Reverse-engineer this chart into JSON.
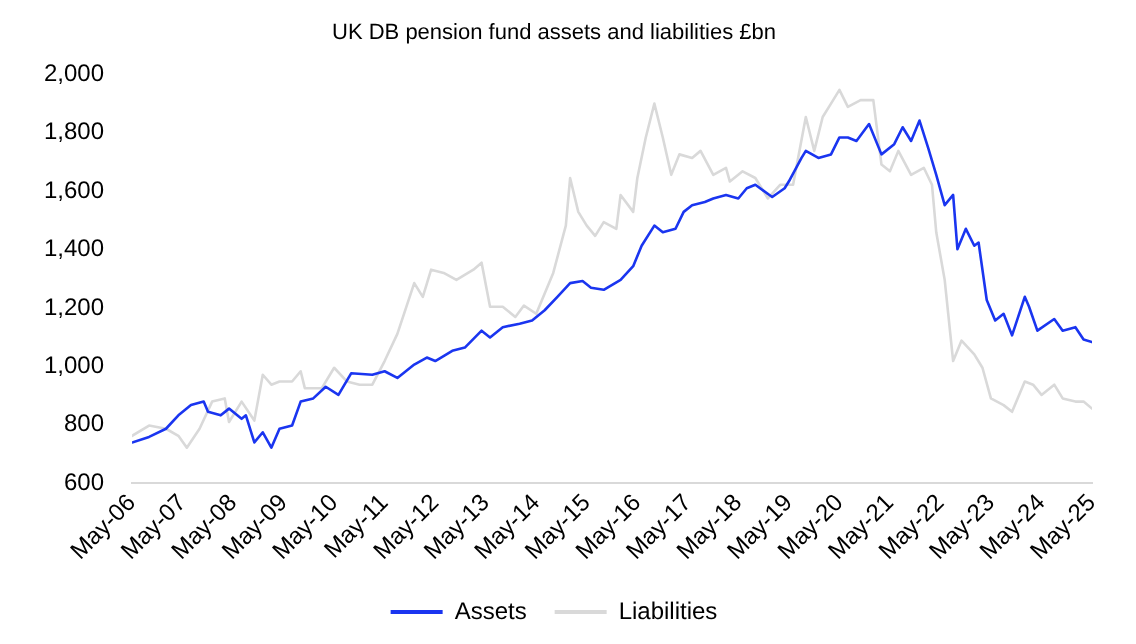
{
  "chart_data": {
    "type": "line",
    "title": "UK DB pension fund assets and liabilities £bn",
    "xlim": [
      "2006-05",
      "2025-05"
    ],
    "xticks": [
      {
        "value": "2006-05",
        "label": "May-06"
      },
      {
        "value": "2007-05",
        "label": "May-07"
      },
      {
        "value": "2008-05",
        "label": "May-08"
      },
      {
        "value": "2009-05",
        "label": "May-09"
      },
      {
        "value": "2010-05",
        "label": "May-10"
      },
      {
        "value": "2011-05",
        "label": "May-11"
      },
      {
        "value": "2012-05",
        "label": "May-12"
      },
      {
        "value": "2013-05",
        "label": "May-13"
      },
      {
        "value": "2014-05",
        "label": "May-14"
      },
      {
        "value": "2015-05",
        "label": "May-15"
      },
      {
        "value": "2016-05",
        "label": "May-16"
      },
      {
        "value": "2017-05",
        "label": "May-17"
      },
      {
        "value": "2018-05",
        "label": "May-18"
      },
      {
        "value": "2019-05",
        "label": "May-19"
      },
      {
        "value": "2020-05",
        "label": "May-20"
      },
      {
        "value": "2021-05",
        "label": "May-21"
      },
      {
        "value": "2022-05",
        "label": "May-22"
      },
      {
        "value": "2023-05",
        "label": "May-23"
      },
      {
        "value": "2024-05",
        "label": "May-24"
      },
      {
        "value": "2025-05",
        "label": "May-25"
      }
    ],
    "ylim": [
      600,
      2000
    ],
    "yticks": [
      600,
      800,
      {
        "value": 1000,
        "label": "1,000"
      },
      {
        "value": 1200,
        "label": "1,200"
      },
      {
        "value": 1400,
        "label": "1,400"
      },
      {
        "value": 1600,
        "label": "1,600"
      },
      {
        "value": 1800,
        "label": "1,800"
      },
      {
        "value": 2000,
        "label": "2,000"
      }
    ],
    "grid": false,
    "legend": "bottom",
    "marker": "none",
    "line_style": "solid",
    "series": [
      {
        "name": "Assets",
        "color": "#1a35f0",
        "x": [
          "2006-05",
          "2006-09",
          "2007-01",
          "2007-04",
          "2007-07",
          "2007-10",
          "2007-11",
          "2008-02",
          "2008-04",
          "2008-07",
          "2008-08",
          "2008-10",
          "2008-12",
          "2009-02",
          "2009-04",
          "2009-07",
          "2009-09",
          "2009-12",
          "2010-03",
          "2010-06",
          "2010-09",
          "2011-02",
          "2011-05",
          "2011-08",
          "2011-12",
          "2012-03",
          "2012-05",
          "2012-09",
          "2012-12",
          "2013-04",
          "2013-06",
          "2013-09",
          "2014-01",
          "2014-04",
          "2014-07",
          "2014-10",
          "2015-01",
          "2015-04",
          "2015-06",
          "2015-09",
          "2016-01",
          "2016-04",
          "2016-06",
          "2016-09",
          "2016-11",
          "2017-02",
          "2017-04",
          "2017-06",
          "2017-09",
          "2017-11",
          "2018-02",
          "2018-05",
          "2018-07",
          "2018-09",
          "2019-01",
          "2019-04",
          "2019-05",
          "2019-08",
          "2019-09",
          "2019-12",
          "2020-03",
          "2020-05",
          "2020-07",
          "2020-09",
          "2020-12",
          "2021-03",
          "2021-06",
          "2021-08",
          "2021-10",
          "2021-12",
          "2022-02",
          "2022-04",
          "2022-06",
          "2022-08",
          "2022-09",
          "2022-11",
          "2023-01",
          "2023-02",
          "2023-04",
          "2023-06",
          "2023-08",
          "2023-10",
          "2024-01",
          "2024-02",
          "2024-04",
          "2024-08",
          "2024-10",
          "2025-01",
          "2025-03",
          "2025-05"
        ],
        "values": [
          739,
          758,
          786,
          832,
          867,
          879,
          844,
          832,
          855,
          820,
          832,
          739,
          774,
          721,
          786,
          797,
          879,
          890,
          930,
          902,
          976,
          971,
          983,
          960,
          1006,
          1030,
          1018,
          1053,
          1064,
          1122,
          1099,
          1134,
          1146,
          1157,
          1192,
          1238,
          1285,
          1292,
          1269,
          1262,
          1296,
          1343,
          1413,
          1482,
          1459,
          1471,
          1529,
          1552,
          1563,
          1575,
          1587,
          1575,
          1610,
          1622,
          1580,
          1610,
          1633,
          1714,
          1738,
          1714,
          1726,
          1784,
          1784,
          1772,
          1830,
          1726,
          1761,
          1819,
          1772,
          1842,
          1749,
          1656,
          1552,
          1587,
          1401,
          1471,
          1413,
          1424,
          1227,
          1157,
          1180,
          1106,
          1238,
          1204,
          1122,
          1162,
          1122,
          1134,
          1092,
          1083
        ]
      },
      {
        "name": "Liabilities",
        "color": "#d9d9d9",
        "x": [
          "2006-05",
          "2006-09",
          "2007-01",
          "2007-04",
          "2007-06",
          "2007-09",
          "2007-12",
          "2008-03",
          "2008-04",
          "2008-07",
          "2008-10",
          "2008-12",
          "2009-02",
          "2009-04",
          "2009-07",
          "2009-09",
          "2009-10",
          "2010-02",
          "2010-05",
          "2010-08",
          "2010-11",
          "2011-02",
          "2011-05",
          "2011-08",
          "2011-12",
          "2012-02",
          "2012-04",
          "2012-07",
          "2012-10",
          "2013-02",
          "2013-04",
          "2013-06",
          "2013-09",
          "2013-12",
          "2014-02",
          "2014-05",
          "2014-09",
          "2014-12",
          "2015-01",
          "2015-03",
          "2015-05",
          "2015-07",
          "2015-09",
          "2015-12",
          "2016-01",
          "2016-04",
          "2016-05",
          "2016-07",
          "2016-09",
          "2016-11",
          "2017-01",
          "2017-03",
          "2017-06",
          "2017-08",
          "2017-11",
          "2018-02",
          "2018-03",
          "2018-06",
          "2018-09",
          "2018-12",
          "2019-03",
          "2019-06",
          "2019-09",
          "2019-11",
          "2020-01",
          "2020-03",
          "2020-05",
          "2020-07",
          "2020-10",
          "2021-01",
          "2021-03",
          "2021-05",
          "2021-07",
          "2021-10",
          "2022-01",
          "2022-03",
          "2022-04",
          "2022-06",
          "2022-08",
          "2022-10",
          "2023-01",
          "2023-03",
          "2023-05",
          "2023-08",
          "2023-10",
          "2024-01",
          "2024-03",
          "2024-05",
          "2024-08",
          "2024-10",
          "2025-01",
          "2025-03",
          "2025-05"
        ],
        "values": [
          762,
          797,
          786,
          762,
          721,
          786,
          879,
          890,
          809,
          879,
          814,
          971,
          937,
          948,
          948,
          983,
          925,
          925,
          995,
          948,
          937,
          937,
          1018,
          1111,
          1285,
          1238,
          1331,
          1320,
          1296,
          1331,
          1355,
          1204,
          1204,
          1169,
          1208,
          1180,
          1320,
          1482,
          1645,
          1529,
          1482,
          1447,
          1494,
          1471,
          1587,
          1529,
          1645,
          1784,
          1900,
          1784,
          1656,
          1726,
          1714,
          1738,
          1656,
          1680,
          1633,
          1668,
          1645,
          1575,
          1622,
          1622,
          1854,
          1738,
          1854,
          1900,
          1947,
          1889,
          1912,
          1912,
          1691,
          1668,
          1738,
          1656,
          1680,
          1622,
          1459,
          1296,
          1018,
          1088,
          1041,
          995,
          890,
          867,
          844,
          948,
          937,
          902,
          937,
          890,
          879,
          879,
          855
        ]
      }
    ]
  }
}
